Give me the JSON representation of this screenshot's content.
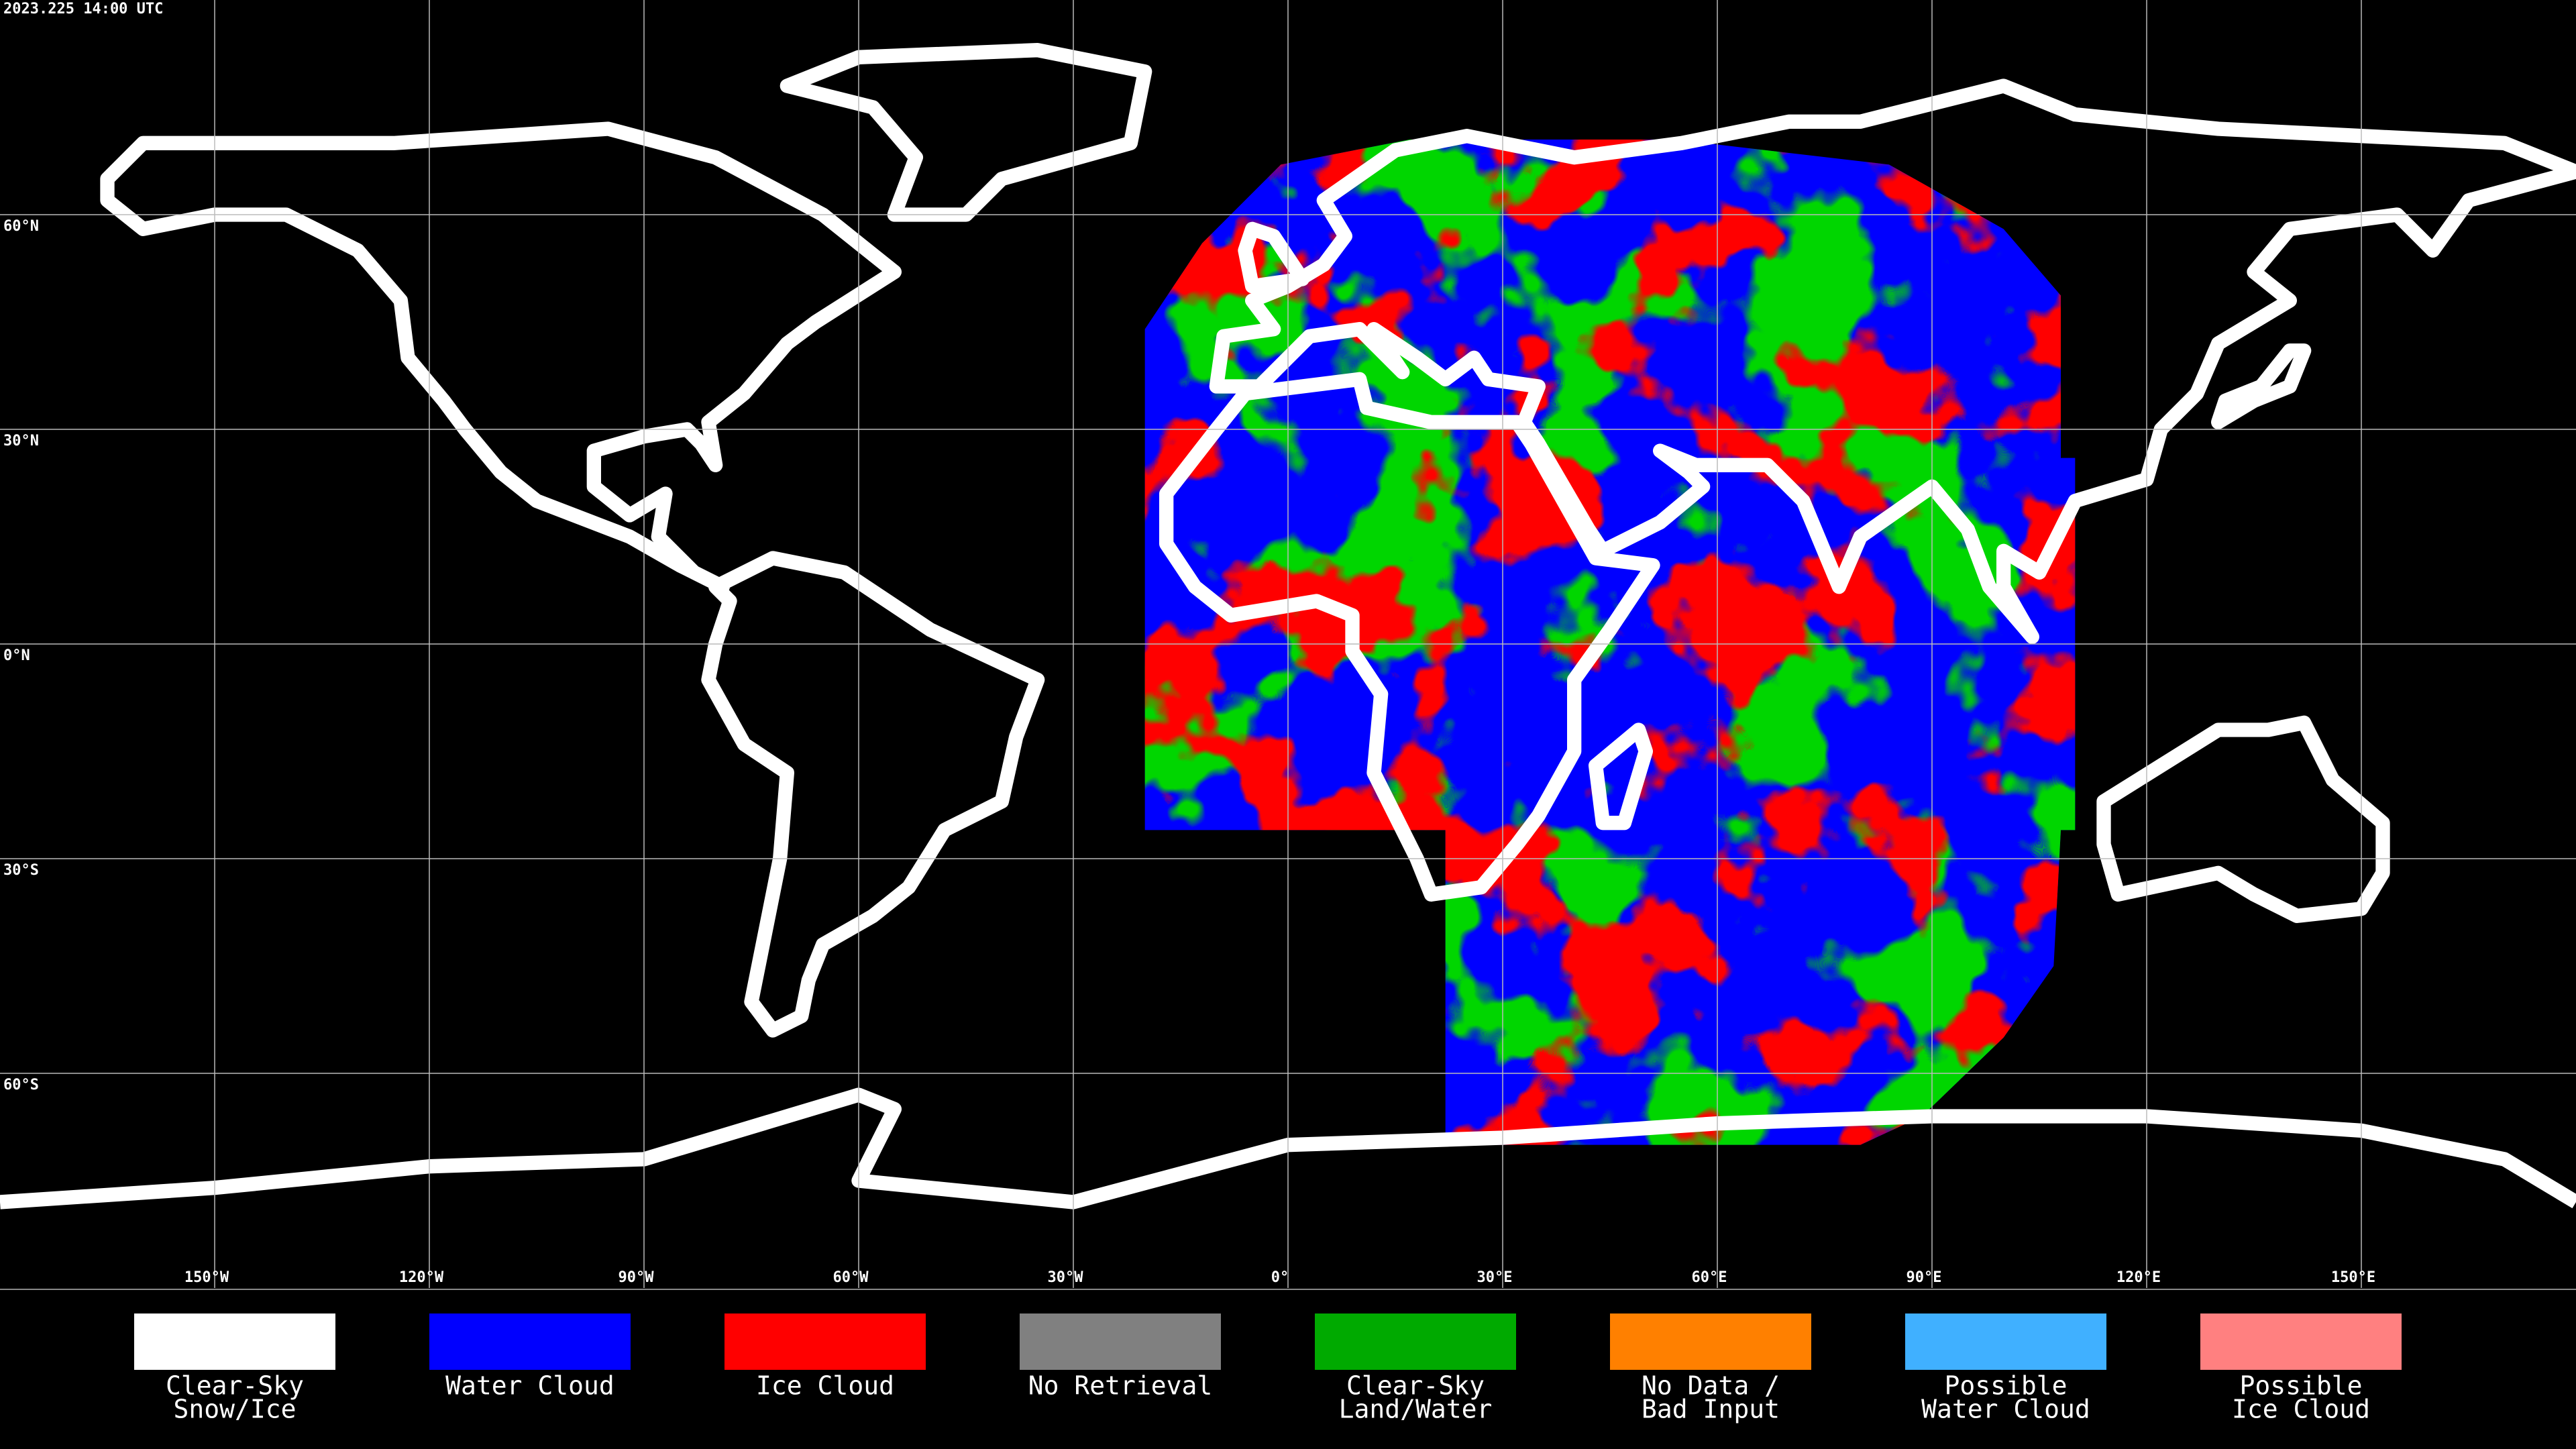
{
  "map": {
    "title": "2023.225 14:00 UTC",
    "lon_ticks": [
      {
        "value": -150,
        "label": "150°W"
      },
      {
        "value": -120,
        "label": "120°W"
      },
      {
        "value": -90,
        "label": "90°W"
      },
      {
        "value": -60,
        "label": "60°W"
      },
      {
        "value": -30,
        "label": "30°W"
      },
      {
        "value": 0,
        "label": "0°"
      },
      {
        "value": 30,
        "label": "30°E"
      },
      {
        "value": 60,
        "label": "60°E"
      },
      {
        "value": 90,
        "label": "90°E"
      },
      {
        "value": 120,
        "label": "120°E"
      },
      {
        "value": 150,
        "label": "150°E"
      }
    ],
    "lat_ticks": [
      {
        "value": 60,
        "label": "60°N"
      },
      {
        "value": 30,
        "label": "30°N"
      },
      {
        "value": 0,
        "label": "0°N"
      },
      {
        "value": -30,
        "label": "30°S"
      },
      {
        "value": -60,
        "label": "60°S"
      }
    ],
    "legend": [
      {
        "color": "#ffffff",
        "label": [
          "Clear-Sky",
          "Snow/Ice"
        ]
      },
      {
        "color": "#0000ff",
        "label": [
          "Water Cloud"
        ]
      },
      {
        "color": "#ff0000",
        "label": [
          "Ice Cloud"
        ]
      },
      {
        "color": "#808080",
        "label": [
          "No Retrieval"
        ]
      },
      {
        "color": "#00aa00",
        "label": [
          "Clear-Sky",
          "Land/Water"
        ]
      },
      {
        "color": "#ff8000",
        "label": [
          "No Data /",
          "Bad Input"
        ]
      },
      {
        "color": "#40b0ff",
        "label": [
          "Possible",
          "Water Cloud"
        ]
      },
      {
        "color": "#ff8080",
        "label": [
          "Possible",
          "Ice Cloud"
        ]
      }
    ]
  }
}
